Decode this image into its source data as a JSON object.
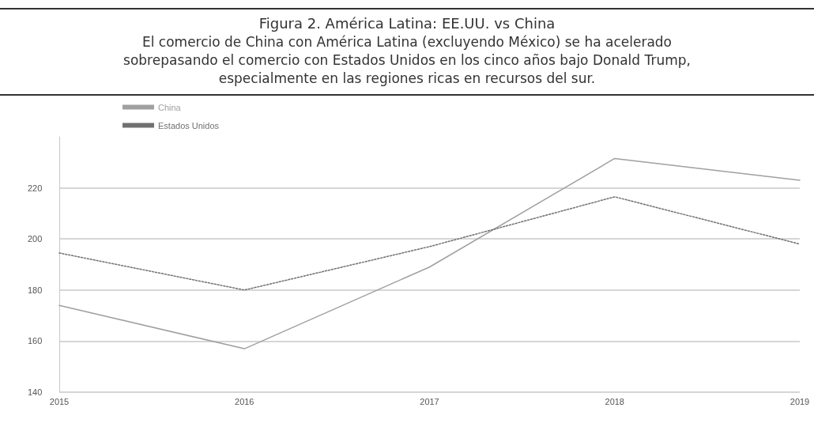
{
  "chart_data": {
    "type": "line",
    "title": "Figura 2. América Latina: EE.UU. vs China",
    "subtitle": "El comercio de China con América Latina (excluyendo México) se ha acelerado\nsobrepasando el comercio con Estados Unidos en los cinco años bajo Donald Trump,\nespecialmente en las regiones ricas en recursos del sur.",
    "categories": [
      "2015",
      "2016",
      "2017",
      "2018",
      "2019"
    ],
    "series": [
      {
        "name": "China",
        "color": "#a0a0a0",
        "line_style": "solid",
        "values": [
          174,
          157,
          189,
          231.5,
          223
        ]
      },
      {
        "name": "Estados Unidos",
        "color": "#707070",
        "line_style": "dotted",
        "values": [
          194.5,
          180,
          197,
          216.5,
          198
        ]
      }
    ],
    "ylim": [
      140,
      240
    ],
    "yticks": [
      140,
      160,
      180,
      200,
      220
    ],
    "grid": "y",
    "legend": "top left",
    "marker": "none"
  }
}
